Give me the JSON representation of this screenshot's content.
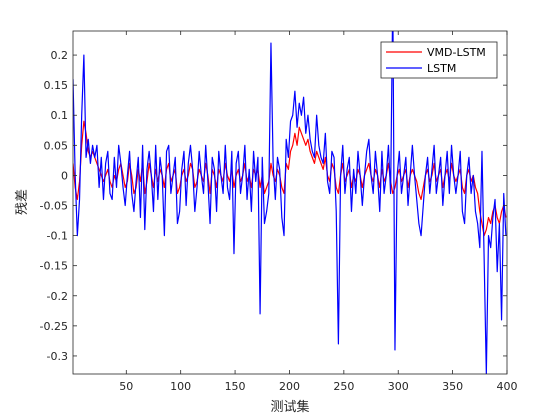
{
  "chart_data": {
    "type": "line",
    "title": "",
    "xlabel": "测试集",
    "ylabel": "残差",
    "xlim": [
      1,
      400
    ],
    "ylim": [
      -0.33,
      0.24
    ],
    "xticks": [
      50,
      100,
      150,
      200,
      250,
      300,
      350,
      400
    ],
    "yticks": [
      0.2,
      0.15,
      0.1,
      0.05,
      0,
      -0.05,
      -0.1,
      -0.15,
      -0.2,
      -0.25,
      -0.3
    ],
    "ytick_labels": [
      "0.2",
      "0.15",
      "0.1",
      "0.05",
      "0",
      "-0.05",
      "-0.1",
      "-0.15",
      "-0.2",
      "-0.25",
      "-0.3"
    ],
    "grid": false,
    "legend_position": "top-right",
    "series": [
      {
        "name": "VMD-LSTM",
        "color": "#ff0000",
        "x": [
          1,
          3,
          5,
          7,
          9,
          11,
          13,
          15,
          17,
          19,
          21,
          23,
          25,
          27,
          29,
          31,
          33,
          35,
          37,
          39,
          41,
          43,
          45,
          47,
          49,
          51,
          53,
          55,
          57,
          59,
          61,
          63,
          65,
          67,
          69,
          71,
          73,
          75,
          77,
          79,
          81,
          83,
          85,
          87,
          89,
          91,
          93,
          95,
          97,
          99,
          101,
          103,
          105,
          107,
          109,
          111,
          113,
          115,
          117,
          119,
          121,
          123,
          125,
          127,
          129,
          131,
          133,
          135,
          137,
          139,
          141,
          143,
          145,
          147,
          149,
          151,
          153,
          155,
          157,
          159,
          161,
          163,
          165,
          167,
          169,
          171,
          173,
          175,
          177,
          179,
          181,
          183,
          185,
          187,
          189,
          191,
          193,
          195,
          197,
          199,
          201,
          203,
          205,
          207,
          209,
          211,
          213,
          215,
          217,
          219,
          221,
          223,
          225,
          227,
          229,
          231,
          233,
          235,
          237,
          239,
          241,
          243,
          245,
          247,
          249,
          251,
          253,
          255,
          257,
          259,
          261,
          263,
          265,
          267,
          269,
          271,
          273,
          275,
          277,
          279,
          281,
          283,
          285,
          287,
          289,
          291,
          293,
          295,
          297,
          299,
          301,
          303,
          305,
          307,
          309,
          311,
          313,
          315,
          317,
          319,
          321,
          323,
          325,
          327,
          329,
          331,
          333,
          335,
          337,
          339,
          341,
          343,
          345,
          347,
          349,
          351,
          353,
          355,
          357,
          359,
          361,
          363,
          365,
          367,
          369,
          371,
          373,
          375,
          377,
          379,
          381,
          383,
          385,
          387,
          389,
          391,
          393,
          395,
          397,
          399
        ],
        "values": [
          0.02,
          -0.02,
          -0.04,
          -0.01,
          0.05,
          0.09,
          0.07,
          0.04,
          0.03,
          0.04,
          0.03,
          0.02,
          0.01,
          0.0,
          -0.01,
          0.0,
          0.01,
          -0.01,
          -0.02,
          0.0,
          -0.01,
          0.01,
          0.02,
          0.0,
          -0.02,
          -0.01,
          0.02,
          0.0,
          -0.03,
          -0.02,
          0.01,
          -0.01,
          0.02,
          -0.03,
          -0.01,
          0.02,
          0.0,
          -0.02,
          0.01,
          -0.01,
          0.01,
          0.0,
          -0.02,
          0.01,
          0.02,
          -0.01,
          0.0,
          0.01,
          -0.03,
          -0.02,
          0.0,
          0.01,
          -0.01,
          0.0,
          0.02,
          0.01,
          -0.02,
          -0.01,
          0.01,
          0.0,
          -0.01,
          0.02,
          0.0,
          -0.03,
          0.01,
          0.0,
          -0.02,
          0.01,
          0.0,
          -0.01,
          0.02,
          0.0,
          -0.01,
          0.01,
          -0.02,
          0.0,
          0.01,
          -0.01,
          0.0,
          0.02,
          -0.01,
          0.0,
          -0.02,
          0.01,
          0.0,
          0.01,
          -0.02,
          0.0,
          -0.03,
          -0.02,
          -0.01,
          0.02,
          0.0,
          -0.01,
          0.01,
          0.0,
          -0.02,
          -0.03,
          0.02,
          0.01,
          0.04,
          0.05,
          0.07,
          0.05,
          0.08,
          0.07,
          0.06,
          0.05,
          0.06,
          0.04,
          0.03,
          0.02,
          0.04,
          0.03,
          0.02,
          0.01,
          0.03,
          0.0,
          -0.01,
          0.02,
          0.01,
          -0.02,
          -0.03,
          0.0,
          0.02,
          -0.01,
          0.0,
          0.01,
          -0.02,
          0.0,
          -0.01,
          0.01,
          0.0,
          -0.02,
          0.0,
          0.01,
          0.02,
          0.0,
          -0.01,
          0.01,
          0.0,
          -0.02,
          0.01,
          -0.01,
          0.0,
          0.02,
          -0.01,
          -0.03,
          -0.02,
          0.0,
          0.01,
          -0.01,
          0.0,
          0.01,
          -0.02,
          0.0,
          0.01,
          0.0,
          -0.01,
          -0.03,
          -0.04,
          -0.02,
          0.0,
          0.01,
          -0.01,
          0.0,
          0.02,
          -0.01,
          0.0,
          0.01,
          -0.02,
          0.0,
          0.01,
          -0.01,
          0.02,
          0.0,
          -0.01,
          0.0,
          0.01,
          -0.02,
          -0.03,
          0.0,
          0.01,
          -0.01,
          0.0,
          -0.02,
          -0.03,
          -0.06,
          -0.08,
          -0.1,
          -0.09,
          -0.07,
          -0.08,
          -0.06,
          -0.05,
          -0.07,
          -0.08,
          -0.06,
          -0.05,
          -0.07
        ]
      },
      {
        "name": "LSTM",
        "color": "#0000ff",
        "x": [
          1,
          3,
          5,
          7,
          9,
          11,
          13,
          15,
          17,
          19,
          21,
          23,
          25,
          27,
          29,
          31,
          33,
          35,
          37,
          39,
          41,
          43,
          45,
          47,
          49,
          51,
          53,
          55,
          57,
          59,
          61,
          63,
          65,
          67,
          69,
          71,
          73,
          75,
          77,
          79,
          81,
          83,
          85,
          87,
          89,
          91,
          93,
          95,
          97,
          99,
          101,
          103,
          105,
          107,
          109,
          111,
          113,
          115,
          117,
          119,
          121,
          123,
          125,
          127,
          129,
          131,
          133,
          135,
          137,
          139,
          141,
          143,
          145,
          147,
          149,
          151,
          153,
          155,
          157,
          159,
          161,
          163,
          165,
          167,
          169,
          171,
          173,
          175,
          177,
          179,
          181,
          183,
          185,
          187,
          189,
          191,
          193,
          195,
          197,
          199,
          201,
          203,
          205,
          207,
          209,
          211,
          213,
          215,
          217,
          219,
          221,
          223,
          225,
          227,
          229,
          231,
          233,
          235,
          237,
          239,
          241,
          243,
          245,
          247,
          249,
          251,
          253,
          255,
          257,
          259,
          261,
          263,
          265,
          267,
          269,
          271,
          273,
          275,
          277,
          279,
          281,
          283,
          285,
          287,
          289,
          291,
          293,
          295,
          297,
          299,
          301,
          303,
          305,
          307,
          309,
          311,
          313,
          315,
          317,
          319,
          321,
          323,
          325,
          327,
          329,
          331,
          333,
          335,
          337,
          339,
          341,
          343,
          345,
          347,
          349,
          351,
          353,
          355,
          357,
          359,
          361,
          363,
          365,
          367,
          369,
          371,
          373,
          375,
          377,
          379,
          381,
          383,
          385,
          387,
          389,
          391,
          393,
          395,
          397,
          399
        ],
        "values": [
          0.16,
          0.0,
          -0.1,
          -0.04,
          0.1,
          0.2,
          0.03,
          0.06,
          0.02,
          0.05,
          0.03,
          0.05,
          -0.02,
          0.03,
          -0.04,
          0.02,
          0.04,
          -0.03,
          -0.04,
          0.03,
          -0.02,
          0.05,
          0.02,
          -0.02,
          -0.05,
          0.0,
          0.04,
          -0.03,
          -0.06,
          -0.01,
          0.03,
          -0.07,
          0.05,
          -0.09,
          0.01,
          0.04,
          0.0,
          -0.06,
          0.05,
          -0.04,
          0.03,
          0.0,
          -0.1,
          0.04,
          0.05,
          -0.03,
          0.0,
          0.03,
          -0.08,
          -0.06,
          0.01,
          0.04,
          -0.05,
          0.02,
          0.05,
          0.01,
          -0.06,
          -0.02,
          0.04,
          0.0,
          -0.03,
          0.05,
          -0.01,
          -0.08,
          0.03,
          0.01,
          -0.06,
          0.04,
          0.0,
          -0.03,
          0.05,
          -0.02,
          -0.04,
          0.04,
          -0.13,
          0.02,
          0.04,
          -0.03,
          0.0,
          0.05,
          -0.04,
          0.01,
          -0.06,
          0.04,
          -0.01,
          0.03,
          -0.23,
          0.03,
          -0.08,
          -0.06,
          -0.03,
          0.22,
          0.02,
          -0.04,
          0.03,
          0.01,
          -0.07,
          -0.1,
          0.06,
          0.03,
          0.09,
          0.1,
          0.14,
          0.08,
          0.12,
          0.1,
          0.13,
          0.07,
          0.1,
          0.06,
          0.04,
          0.03,
          0.1,
          0.05,
          0.03,
          0.02,
          0.07,
          -0.01,
          -0.03,
          0.04,
          0.03,
          -0.06,
          -0.28,
          0.0,
          0.05,
          -0.03,
          0.01,
          0.03,
          -0.06,
          0.01,
          -0.03,
          0.04,
          0.0,
          -0.05,
          0.0,
          0.04,
          0.06,
          0.0,
          -0.03,
          0.04,
          0.0,
          -0.06,
          0.04,
          -0.03,
          0.0,
          0.05,
          -0.03,
          0.3,
          -0.29,
          0.0,
          0.04,
          -0.03,
          0.0,
          0.03,
          -0.05,
          0.0,
          0.05,
          0.0,
          -0.04,
          -0.08,
          -0.1,
          -0.05,
          0.0,
          0.03,
          -0.03,
          0.01,
          0.05,
          -0.03,
          0.0,
          0.03,
          -0.05,
          0.0,
          0.04,
          -0.03,
          0.05,
          0.0,
          -0.03,
          0.0,
          0.04,
          -0.06,
          -0.08,
          0.0,
          0.03,
          -0.03,
          0.0,
          -0.06,
          -0.08,
          -0.12,
          0.04,
          -0.14,
          -0.33,
          -0.1,
          -0.12,
          -0.07,
          -0.04,
          -0.16,
          -0.08,
          -0.24,
          -0.03,
          -0.1
        ]
      }
    ]
  }
}
